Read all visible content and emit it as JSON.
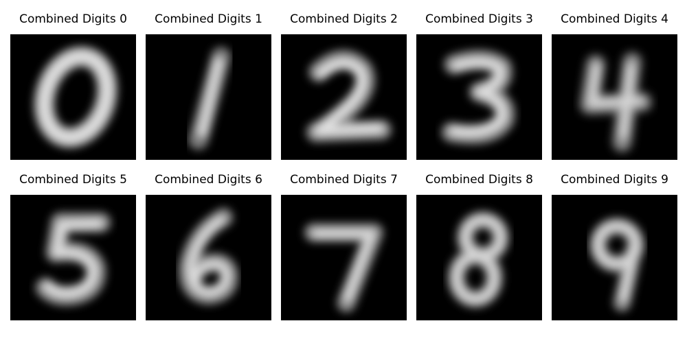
{
  "figure": {
    "panels": [
      {
        "title": "Combined Digits 0",
        "digit": 0
      },
      {
        "title": "Combined Digits 1",
        "digit": 1
      },
      {
        "title": "Combined Digits 2",
        "digit": 2
      },
      {
        "title": "Combined Digits 3",
        "digit": 3
      },
      {
        "title": "Combined Digits 4",
        "digit": 4
      },
      {
        "title": "Combined Digits 5",
        "digit": 5
      },
      {
        "title": "Combined Digits 6",
        "digit": 6
      },
      {
        "title": "Combined Digits 7",
        "digit": 7
      },
      {
        "title": "Combined Digits 8",
        "digit": 8
      },
      {
        "title": "Combined Digits 9",
        "digit": 9
      }
    ],
    "colormap": "gray",
    "background_color": "#000000",
    "stroke_color": "#e6e6e6"
  }
}
